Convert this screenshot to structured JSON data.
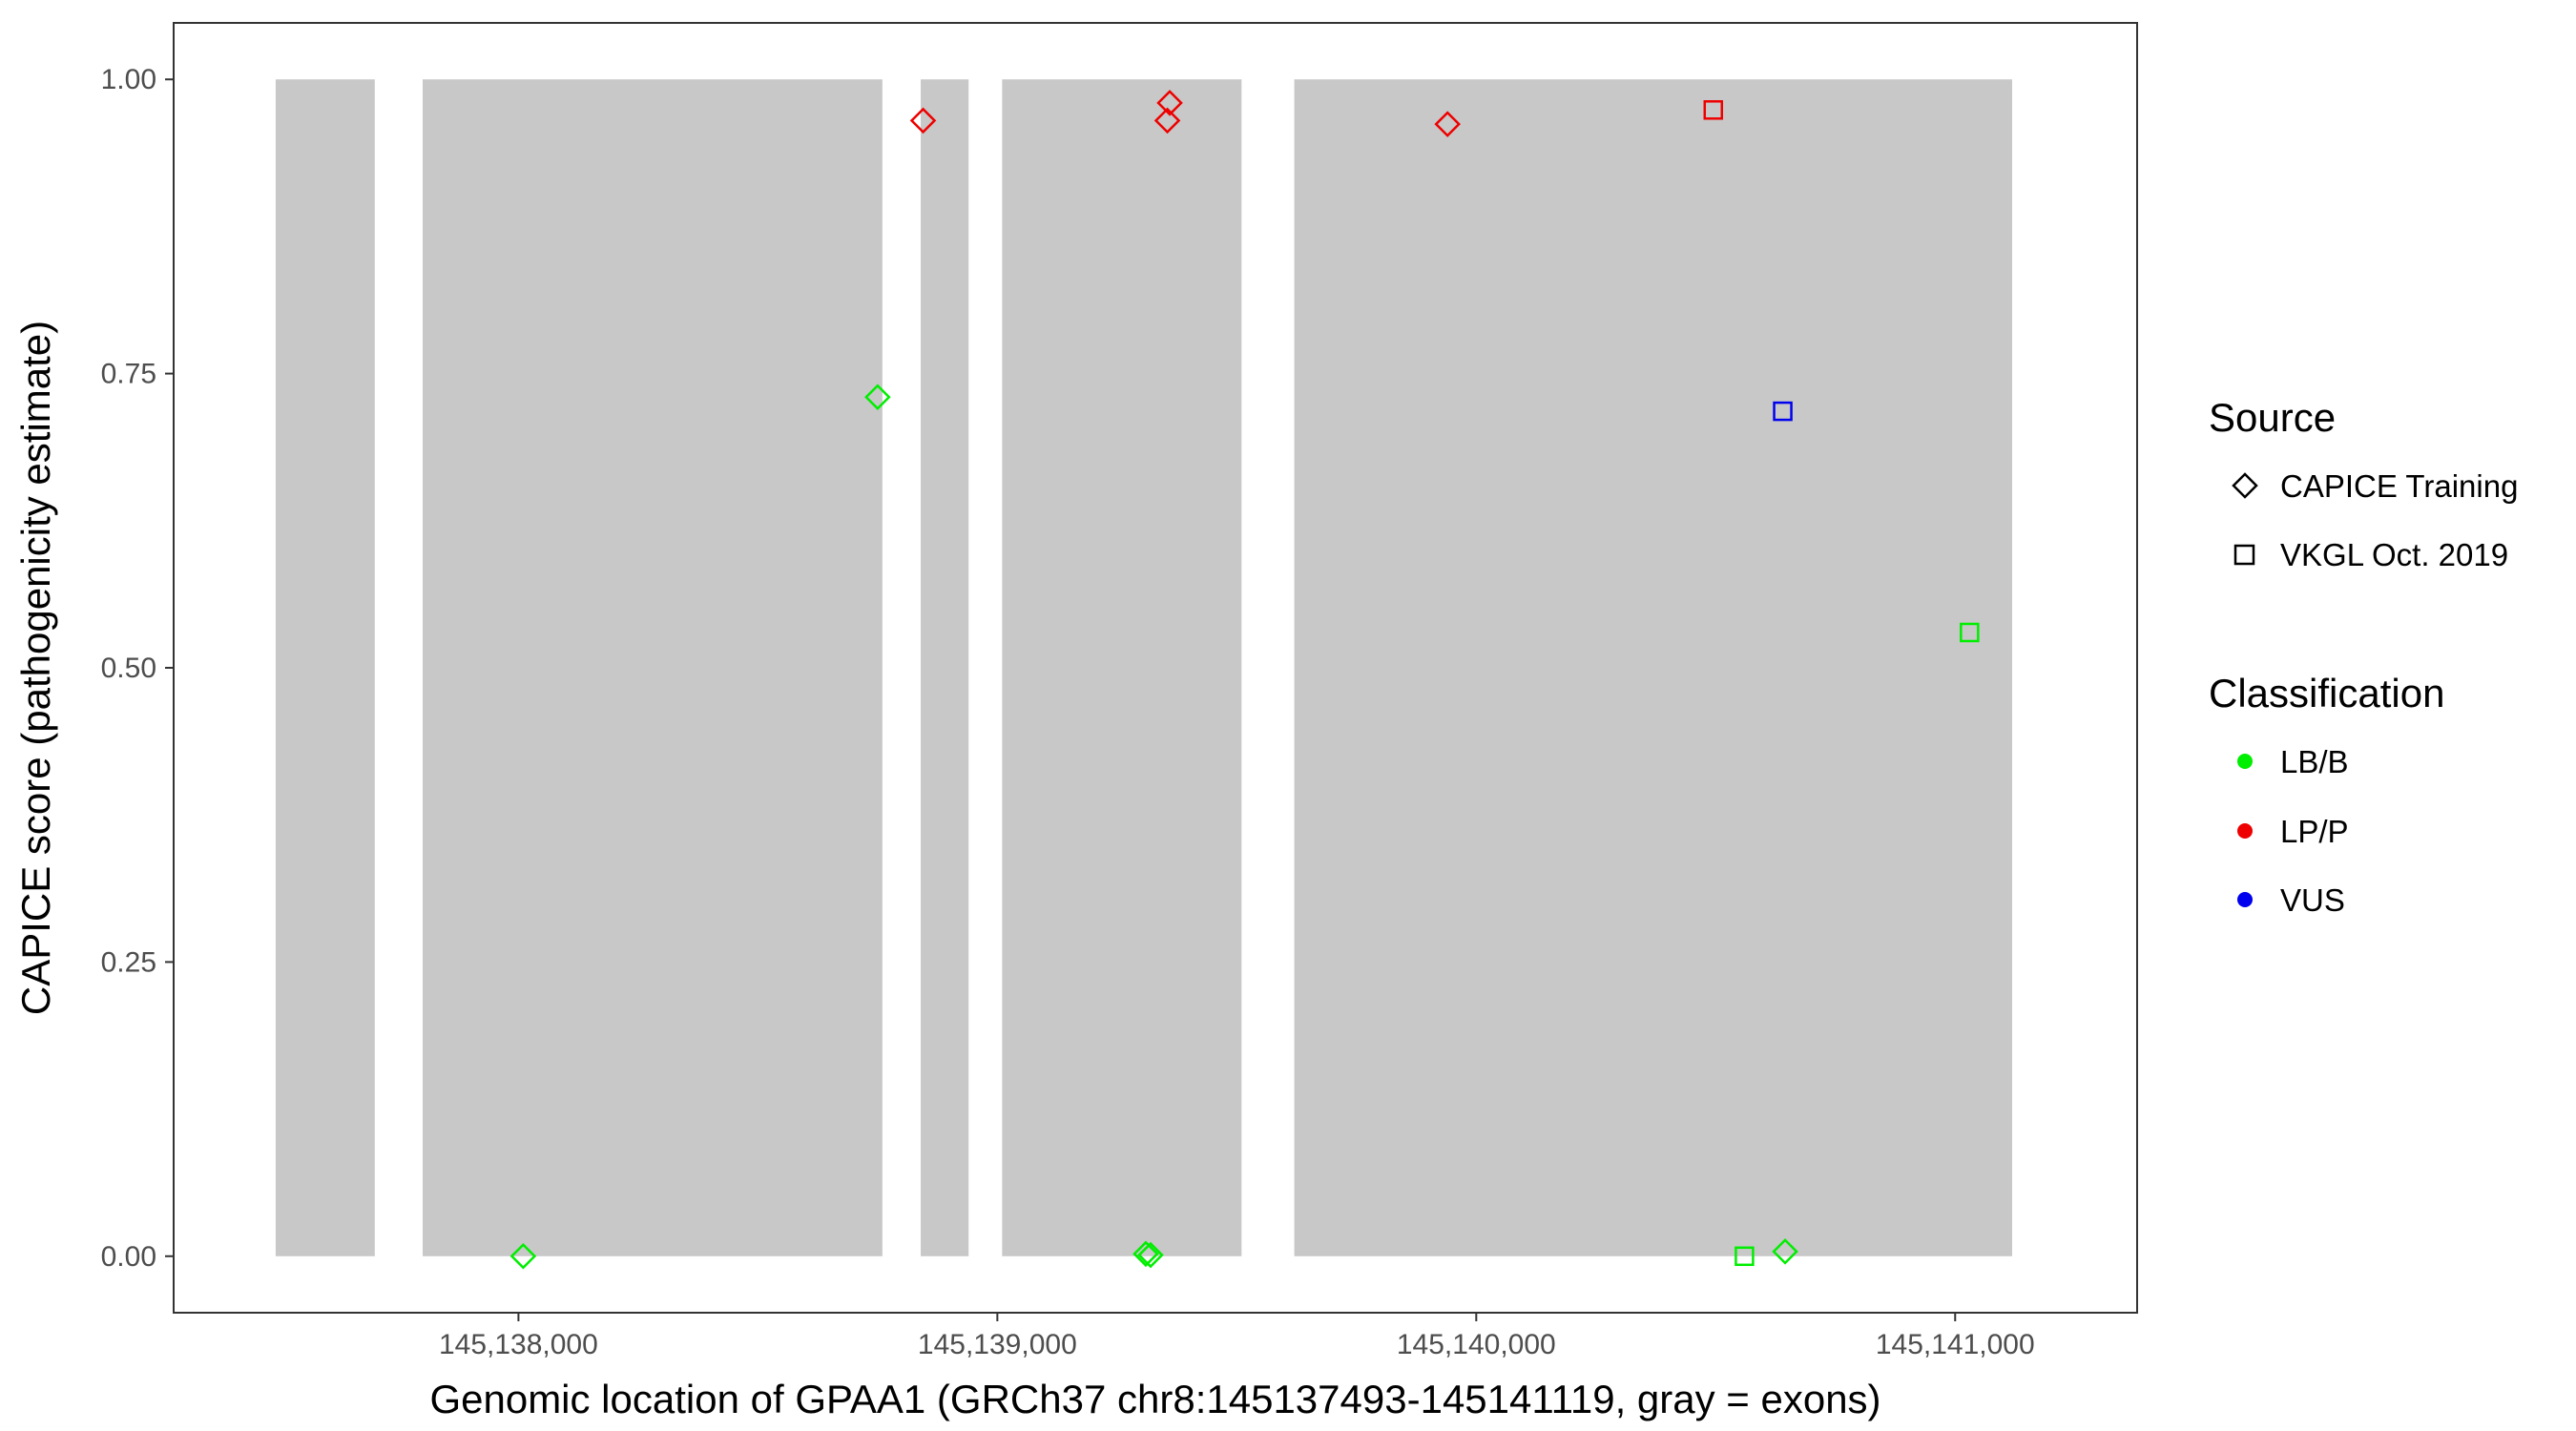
{
  "chart_data": {
    "type": "scatter",
    "xlabel": "Genomic location of GPAA1 (GRCh37 chr8:145137493-145141119, gray = exons)",
    "ylabel": "CAPICE score (pathogenicity estimate)",
    "xlim": [
      145137280,
      145141380
    ],
    "ylim": [
      -0.048,
      1.048
    ],
    "x_ticks": [
      145138000,
      145139000,
      145140000,
      145141000
    ],
    "x_tick_labels": [
      "145,138,000",
      "145,139,000",
      "145,140,000",
      "145,141,000"
    ],
    "y_ticks": [
      0.0,
      0.25,
      0.5,
      0.75,
      1.0
    ],
    "y_tick_labels": [
      "0.00",
      "0.25",
      "0.50",
      "0.75",
      "1.00"
    ],
    "exons": [
      {
        "start": 145137493,
        "end": 145137700
      },
      {
        "start": 145137800,
        "end": 145138760
      },
      {
        "start": 145138840,
        "end": 145138940
      },
      {
        "start": 145139010,
        "end": 145139510
      },
      {
        "start": 145139620,
        "end": 145141119
      }
    ],
    "series": [
      {
        "source": "CAPICE Training",
        "classification": "LB/B",
        "x": 145138010,
        "y": 0.0
      },
      {
        "source": "CAPICE Training",
        "classification": "LB/B",
        "x": 145138750,
        "y": 0.73
      },
      {
        "source": "CAPICE Training",
        "classification": "LP/P",
        "x": 145138845,
        "y": 0.965
      },
      {
        "source": "CAPICE Training",
        "classification": "LP/P",
        "x": 145139360,
        "y": 0.98
      },
      {
        "source": "CAPICE Training",
        "classification": "LP/P",
        "x": 145139355,
        "y": 0.965
      },
      {
        "source": "CAPICE Training",
        "classification": "LB/B",
        "x": 145139310,
        "y": 0.002
      },
      {
        "source": "CAPICE Training",
        "classification": "LB/B",
        "x": 145139320,
        "y": 0.001
      },
      {
        "source": "CAPICE Training",
        "classification": "LP/P",
        "x": 145139940,
        "y": 0.962
      },
      {
        "source": "VKGL Oct. 2019",
        "classification": "LP/P",
        "x": 145140495,
        "y": 0.974
      },
      {
        "source": "VKGL Oct. 2019",
        "classification": "VUS",
        "x": 145140640,
        "y": 0.718
      },
      {
        "source": "VKGL Oct. 2019",
        "classification": "LB/B",
        "x": 145140560,
        "y": 0.0
      },
      {
        "source": "CAPICE Training",
        "classification": "LB/B",
        "x": 145140645,
        "y": 0.004
      },
      {
        "source": "VKGL Oct. 2019",
        "classification": "LB/B",
        "x": 145141030,
        "y": 0.53
      }
    ],
    "grid": false,
    "legend_position": "right",
    "legends": {
      "source": {
        "title": "Source",
        "entries": [
          {
            "label": "CAPICE Training",
            "shape": "diamond"
          },
          {
            "label": "VKGL Oct. 2019",
            "shape": "square"
          }
        ]
      },
      "classification": {
        "title": "Classification",
        "entries": [
          {
            "label": "LB/B",
            "color": "#00ee00"
          },
          {
            "label": "LP/P",
            "color": "#ee0000"
          },
          {
            "label": "VUS",
            "color": "#0000ee"
          }
        ]
      }
    },
    "colors": {
      "LB/B": "#00ee00",
      "LP/P": "#ee0000",
      "VUS": "#0000ee",
      "exon": "#c8c8c8"
    }
  }
}
